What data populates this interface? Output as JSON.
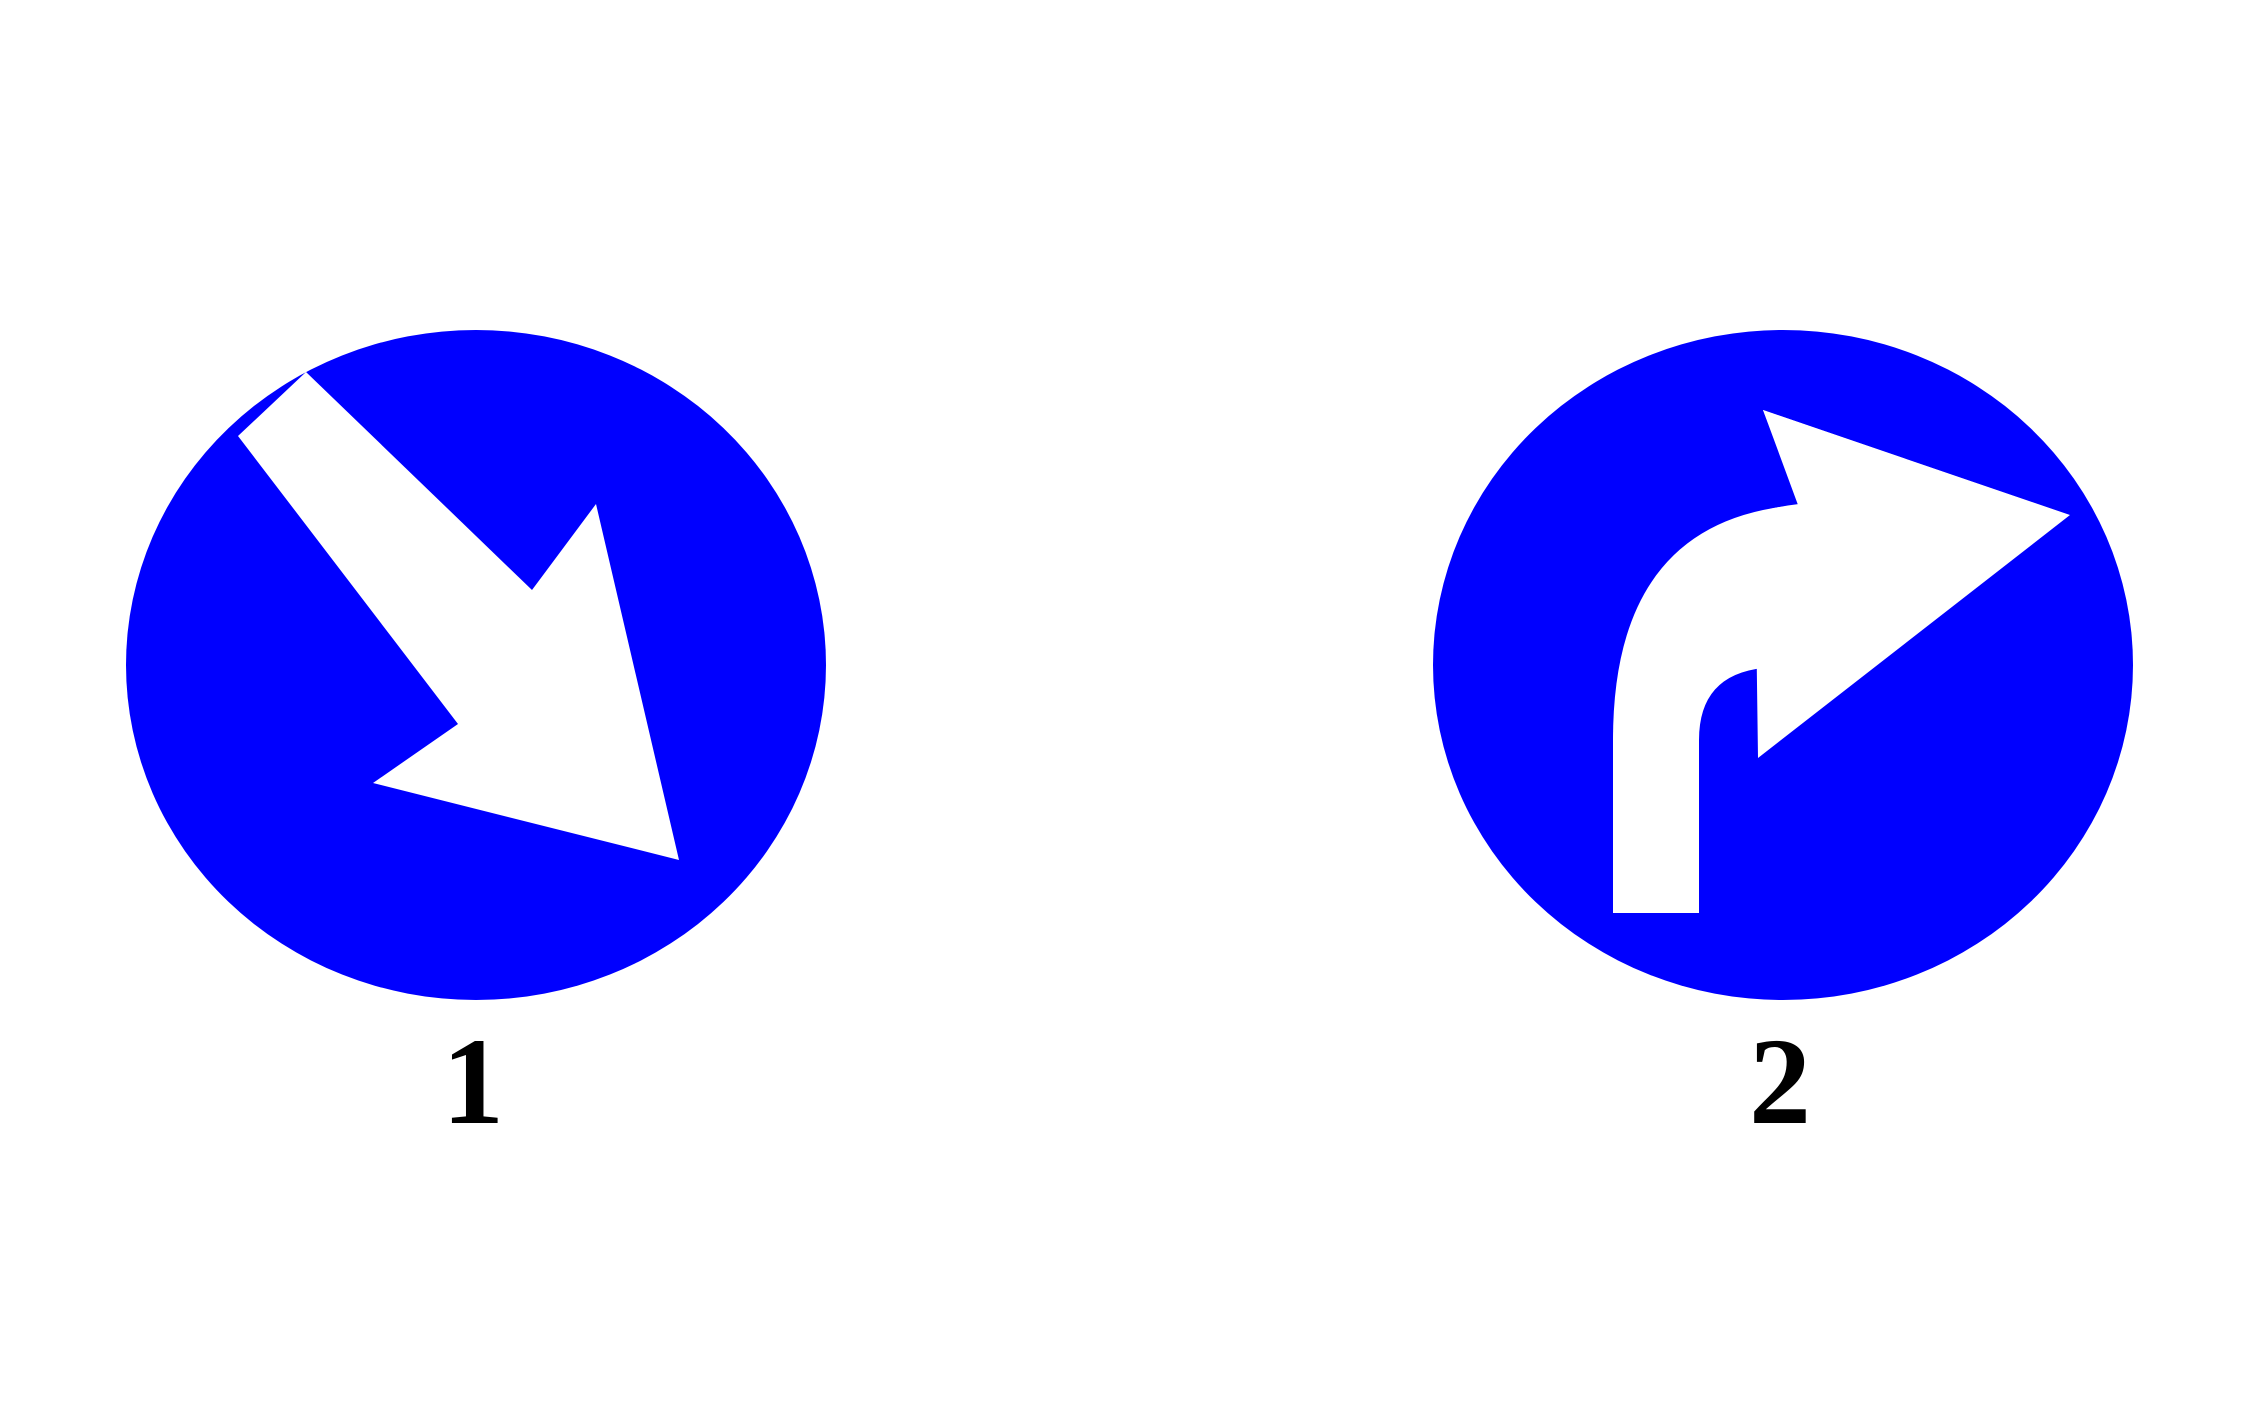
{
  "colors": {
    "sign_fill": "#0000ff",
    "arrow_fill": "#ffffff",
    "label_color": "#000000",
    "background": "#ffffff"
  },
  "signs": [
    {
      "label": "1",
      "icon": "diagonal-down-right-arrow-icon"
    },
    {
      "label": "2",
      "icon": "turn-right-arrow-icon"
    }
  ]
}
